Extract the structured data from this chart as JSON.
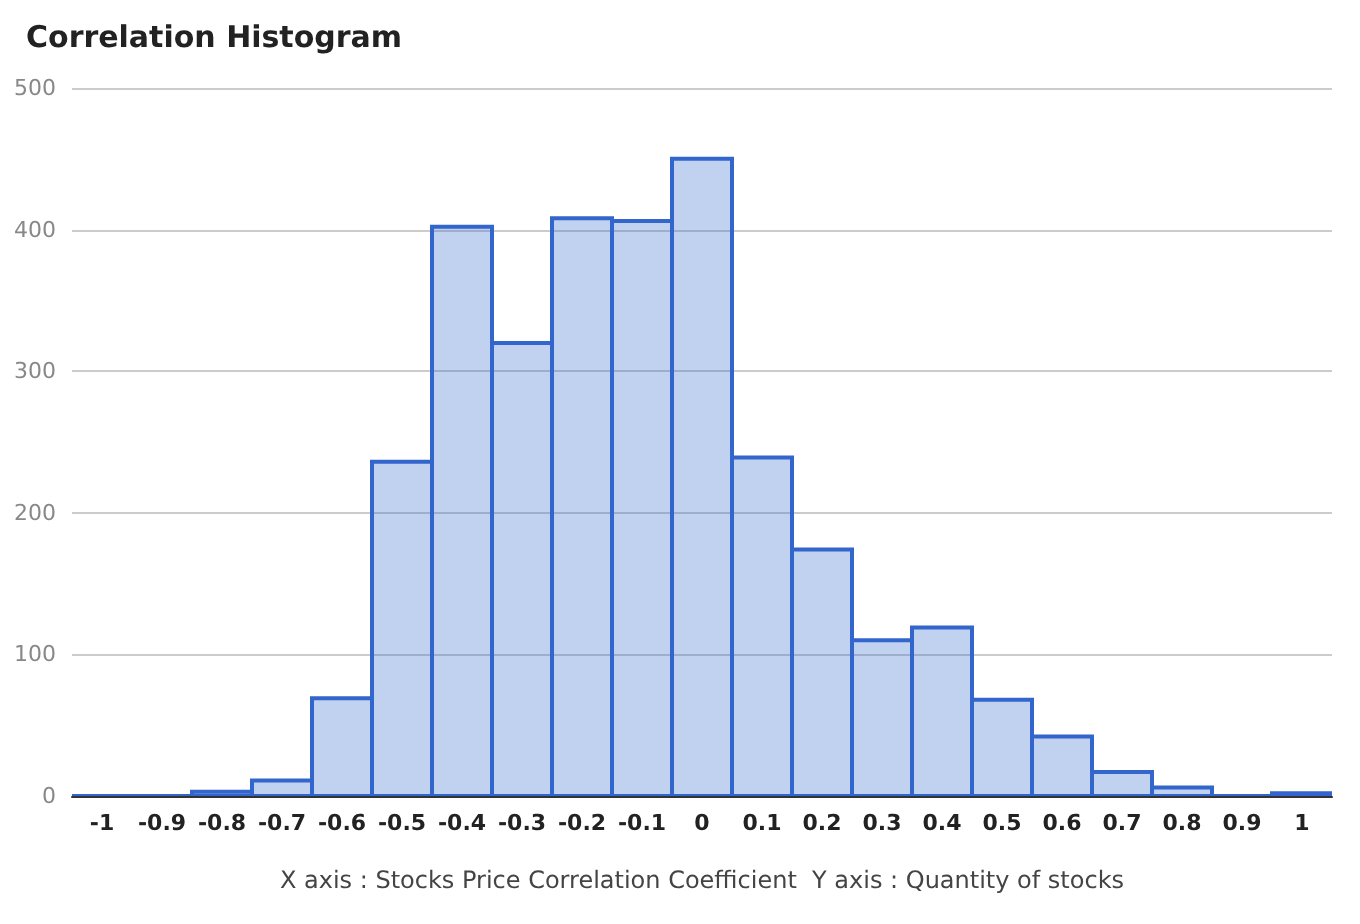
{
  "chart_data": {
    "type": "histogram",
    "title": "Correlation Histogram",
    "xlabel": "X axis : Stocks Price Correlation Coefficient  Y axis : Quantity of stocks",
    "bins": [
      -1.05,
      -0.95,
      -0.85,
      -0.75,
      -0.65,
      -0.55,
      -0.45,
      -0.35,
      -0.25,
      -0.15,
      -0.05,
      0.05,
      0.15,
      0.25,
      0.35,
      0.45,
      0.55,
      0.65,
      0.75,
      0.85,
      0.95,
      1.05
    ],
    "values": [
      0,
      0,
      3,
      11,
      69,
      236,
      402,
      320,
      408,
      406,
      450,
      239,
      174,
      110,
      119,
      68,
      42,
      17,
      6,
      0,
      2
    ],
    "color": "#3366cc",
    "xlim": [
      -1.05,
      1.05
    ],
    "xticks": [
      -1,
      -0.9,
      -0.8,
      -0.7,
      -0.6,
      -0.5,
      -0.4,
      -0.3,
      -0.2,
      -0.1,
      0,
      0.1,
      0.2,
      0.3,
      0.4,
      0.5,
      0.6,
      0.7,
      0.8,
      0.9,
      1
    ],
    "ylim": [
      0,
      500
    ],
    "yticks": [
      0,
      100,
      200,
      300,
      400,
      500
    ],
    "grid": "y"
  }
}
